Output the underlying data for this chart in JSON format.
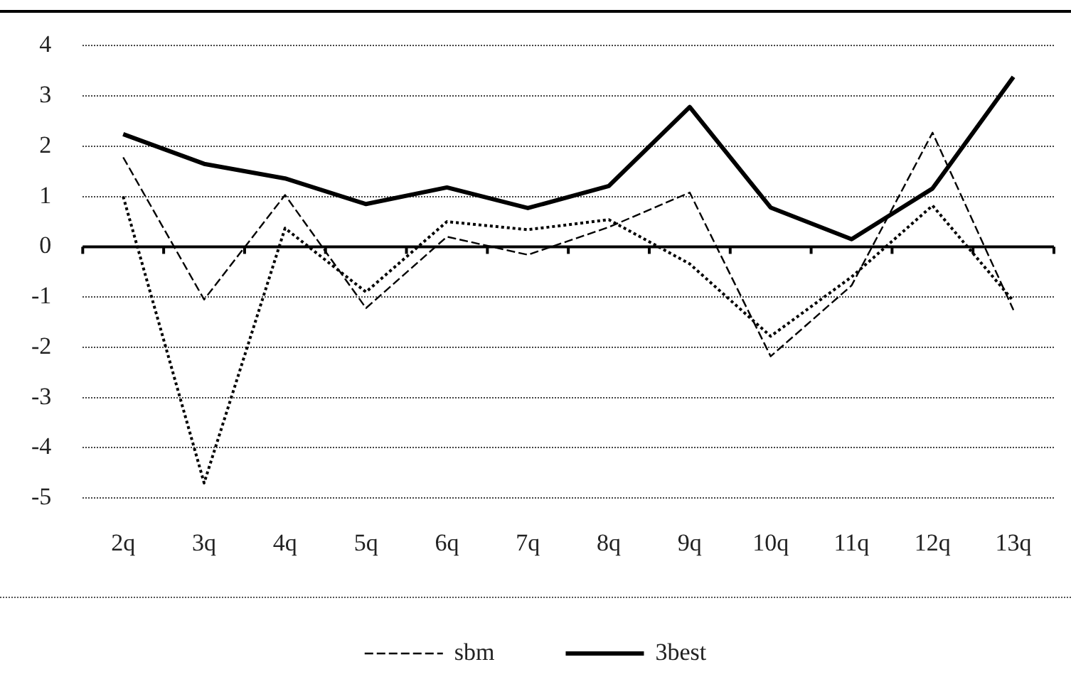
{
  "chart_data": {
    "type": "line",
    "categories": [
      "2q",
      "3q",
      "4q",
      "5q",
      "6q",
      "7q",
      "8q",
      "9q",
      "10q",
      "11q",
      "12q",
      "13q"
    ],
    "series": [
      {
        "color": "#000000",
        "line_style": "dotted",
        "values": [
          1.0,
          -4.7,
          0.37,
          -0.9,
          0.5,
          0.34,
          0.54,
          -0.34,
          -1.78,
          -0.6,
          0.82,
          -1.08
        ]
      },
      {
        "name": "sbm",
        "color": "#000000",
        "line_style": "dashed",
        "values": [
          1.78,
          -1.05,
          1.03,
          -1.22,
          0.2,
          -0.16,
          0.39,
          1.08,
          -2.18,
          -0.77,
          2.27,
          -1.26
        ]
      },
      {
        "name": "3best",
        "color": "#000000",
        "line_style": "solid",
        "values": [
          2.24,
          1.65,
          1.36,
          0.85,
          1.18,
          0.77,
          1.21,
          2.78,
          0.78,
          0.15,
          1.16,
          3.38
        ]
      }
    ],
    "ylim": [
      -5,
      4
    ],
    "yticks": [
      -5,
      -4,
      -3,
      -2,
      -1,
      0,
      1,
      2,
      3,
      4
    ],
    "grid": "y",
    "legend": "bottom",
    "marker": "none"
  }
}
